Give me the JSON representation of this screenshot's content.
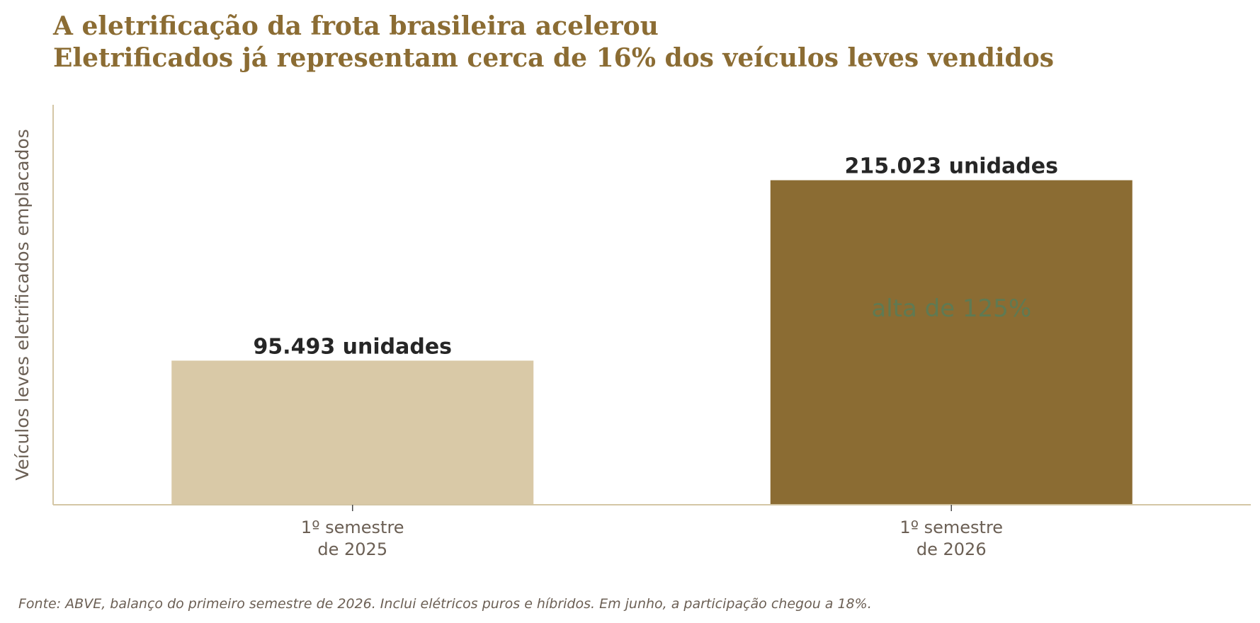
{
  "colors": {
    "accent": "#8b6c33",
    "bar_previous": "#d9c9a7",
    "bar_current": "#8b6c33",
    "axis": "#d4c6a5",
    "annotation": "#5f7a53",
    "value_label": "#262626",
    "muted_text": "#6b5f54"
  },
  "chart_data": {
    "type": "bar",
    "title": "A eletrificação da frota brasileira acelerou",
    "subtitle": "Eletrificados já representam cerca de 16% dos veículos leves vendidos",
    "categories": [
      "1º semestre\nde 2025",
      "1º semestre\nde 2026"
    ],
    "values": [
      95493,
      215023
    ],
    "value_labels": [
      "95.493 unidades",
      "215.023 unidades"
    ],
    "annotation": "alta de 125%",
    "xlabel": "",
    "ylabel": "Veículos leves eletrificados emplacados",
    "ylim": [
      0,
      265000
    ],
    "grid": false,
    "y_ticks_visible": false
  },
  "footnote": "Fonte: ABVE, balanço do primeiro semestre de 2026. Inclui elétricos puros e híbridos. Em junho, a participação chegou a 18%."
}
